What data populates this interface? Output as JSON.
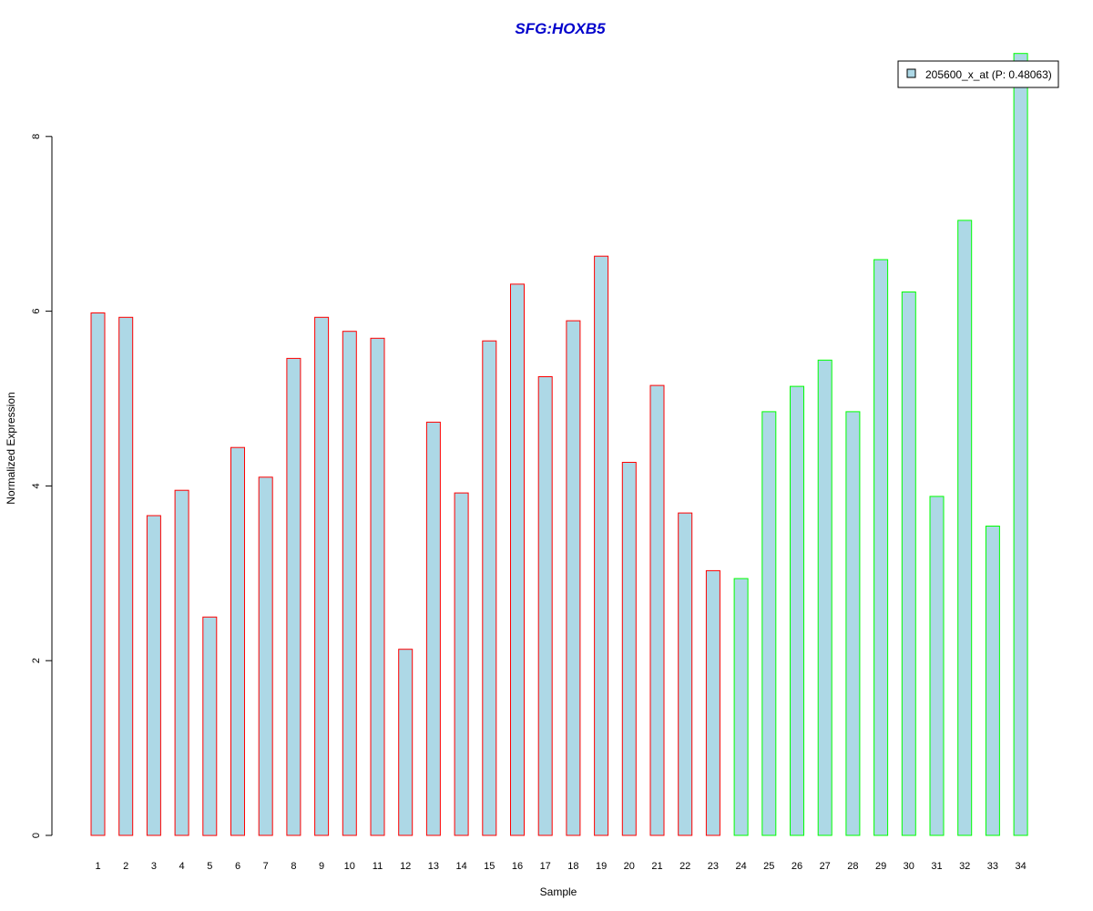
{
  "chart_data": {
    "type": "bar",
    "title": "SFG:HOXB5",
    "xlabel": "Sample",
    "ylabel": "Normalized Expression",
    "categories": [
      "1",
      "2",
      "3",
      "4",
      "5",
      "6",
      "7",
      "8",
      "9",
      "10",
      "11",
      "12",
      "13",
      "14",
      "15",
      "16",
      "17",
      "18",
      "19",
      "20",
      "21",
      "22",
      "23",
      "24",
      "25",
      "26",
      "27",
      "28",
      "29",
      "30",
      "31",
      "32",
      "33",
      "34"
    ],
    "values": [
      5.98,
      5.93,
      3.66,
      3.95,
      2.5,
      4.44,
      4.1,
      5.46,
      5.93,
      5.77,
      5.69,
      2.13,
      4.73,
      3.92,
      5.66,
      6.31,
      5.25,
      5.89,
      6.63,
      4.27,
      5.15,
      3.69,
      3.03,
      2.94,
      4.85,
      5.14,
      5.44,
      4.85,
      6.59,
      6.22,
      3.88,
      7.04,
      3.54,
      8.95
    ],
    "groups": [
      1,
      1,
      1,
      1,
      1,
      1,
      1,
      1,
      1,
      1,
      1,
      1,
      1,
      1,
      1,
      1,
      1,
      1,
      1,
      1,
      1,
      1,
      1,
      2,
      2,
      2,
      2,
      2,
      2,
      2,
      2,
      2,
      2,
      2
    ],
    "yticks": [
      "0",
      "2",
      "4",
      "6",
      "8"
    ],
    "ylim": [
      0,
      9.0
    ],
    "grid": false,
    "legend": {
      "label": "205600_x_at (P: 0.48063)",
      "position": "top-right"
    },
    "colors": {
      "title": "#0000cc",
      "bar_fill": "#add8e6",
      "group1_border": "#ff0000",
      "group2_border": "#00ff00",
      "axis": "#000000"
    }
  }
}
